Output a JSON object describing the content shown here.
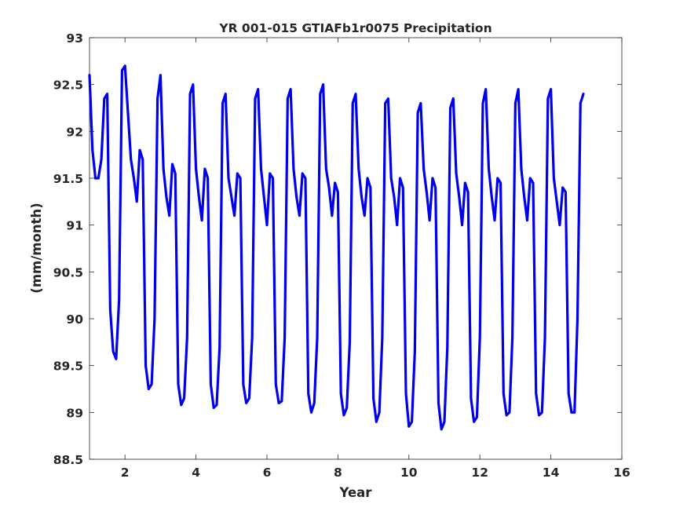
{
  "chart_data": {
    "type": "line",
    "title": "YR 001-015 GTIAFb1r0075 Precipitation",
    "xlabel": "Year",
    "ylabel": "(mm/month)",
    "xlim": [
      1,
      16
    ],
    "ylim": [
      88.5,
      93
    ],
    "x_ticks": [
      2,
      4,
      6,
      8,
      10,
      12,
      14,
      16
    ],
    "y_ticks": [
      88.5,
      89,
      89.5,
      90,
      90.5,
      91,
      91.5,
      92,
      92.5,
      93
    ],
    "grid": false,
    "series": [
      {
        "color": "#0000ee",
        "x_start": 1.0,
        "x_step": 0.0833333,
        "values": [
          92.6,
          91.8,
          91.5,
          91.5,
          91.7,
          92.35,
          92.4,
          90.1,
          89.65,
          89.57,
          90.2,
          92.65,
          92.7,
          92.2,
          91.7,
          91.5,
          91.25,
          91.8,
          91.7,
          89.5,
          89.25,
          89.3,
          90.0,
          92.35,
          92.6,
          91.6,
          91.3,
          91.1,
          91.65,
          91.55,
          89.3,
          89.08,
          89.15,
          89.8,
          92.4,
          92.5,
          91.6,
          91.3,
          91.05,
          91.6,
          91.5,
          89.3,
          89.05,
          89.08,
          89.7,
          92.3,
          92.4,
          91.5,
          91.3,
          91.1,
          91.55,
          91.5,
          89.3,
          89.1,
          89.15,
          89.8,
          92.35,
          92.45,
          91.6,
          91.3,
          91.0,
          91.55,
          91.5,
          89.3,
          89.1,
          89.12,
          89.8,
          92.35,
          92.45,
          91.6,
          91.3,
          91.1,
          91.55,
          91.5,
          89.2,
          89.0,
          89.1,
          89.8,
          92.4,
          92.5,
          91.6,
          91.4,
          91.1,
          91.45,
          91.35,
          89.2,
          88.97,
          89.05,
          89.75,
          92.3,
          92.4,
          91.6,
          91.3,
          91.1,
          91.5,
          91.4,
          89.15,
          88.9,
          89.0,
          89.8,
          92.3,
          92.35,
          91.5,
          91.3,
          91.0,
          91.5,
          91.4,
          89.2,
          88.85,
          88.9,
          89.65,
          92.2,
          92.3,
          91.6,
          91.35,
          91.05,
          91.5,
          91.4,
          89.1,
          88.82,
          88.9,
          89.7,
          92.25,
          92.35,
          91.55,
          91.3,
          91.0,
          91.45,
          91.35,
          89.15,
          88.9,
          88.95,
          89.8,
          92.3,
          92.45,
          91.6,
          91.3,
          91.05,
          91.5,
          91.45,
          89.2,
          88.97,
          89.0,
          89.8,
          92.3,
          92.45,
          91.6,
          91.3,
          91.05,
          91.5,
          91.45,
          89.2,
          88.97,
          89.0,
          89.8,
          92.35,
          92.45,
          91.5,
          91.25,
          91.0,
          91.4,
          91.35,
          89.2,
          89.0,
          89.0,
          90.0,
          92.3,
          92.4
        ]
      }
    ]
  }
}
